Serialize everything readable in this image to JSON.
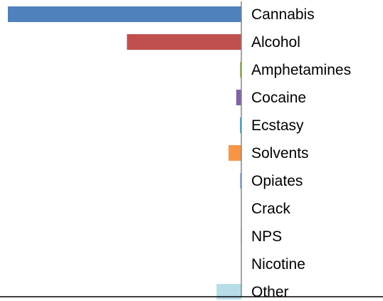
{
  "chart_data": {
    "type": "bar",
    "orientation": "horizontal",
    "direction": "leftward",
    "title": "",
    "xlabel": "",
    "ylabel": "",
    "categories": [
      "Cannabis",
      "Alcohol",
      "Amphetamines",
      "Cocaine",
      "Ecstasy",
      "Solvents",
      "Opiates",
      "Crack",
      "NPS",
      "Nicotine",
      "Other"
    ],
    "values": [
      100,
      49,
      0.6,
      2.2,
      0.6,
      5.5,
      0.6,
      0,
      0.3,
      0,
      10.6
    ],
    "colors": [
      "#4f81bd",
      "#c0504d",
      "#9bbb59",
      "#8064a2",
      "#4bacc6",
      "#f79646",
      "#95b3d7",
      "#d99694",
      "#c3d69b",
      "#b2a2c7",
      "#b7dde8"
    ],
    "xlim": [
      0,
      100
    ],
    "grid": false,
    "legend": "none"
  }
}
